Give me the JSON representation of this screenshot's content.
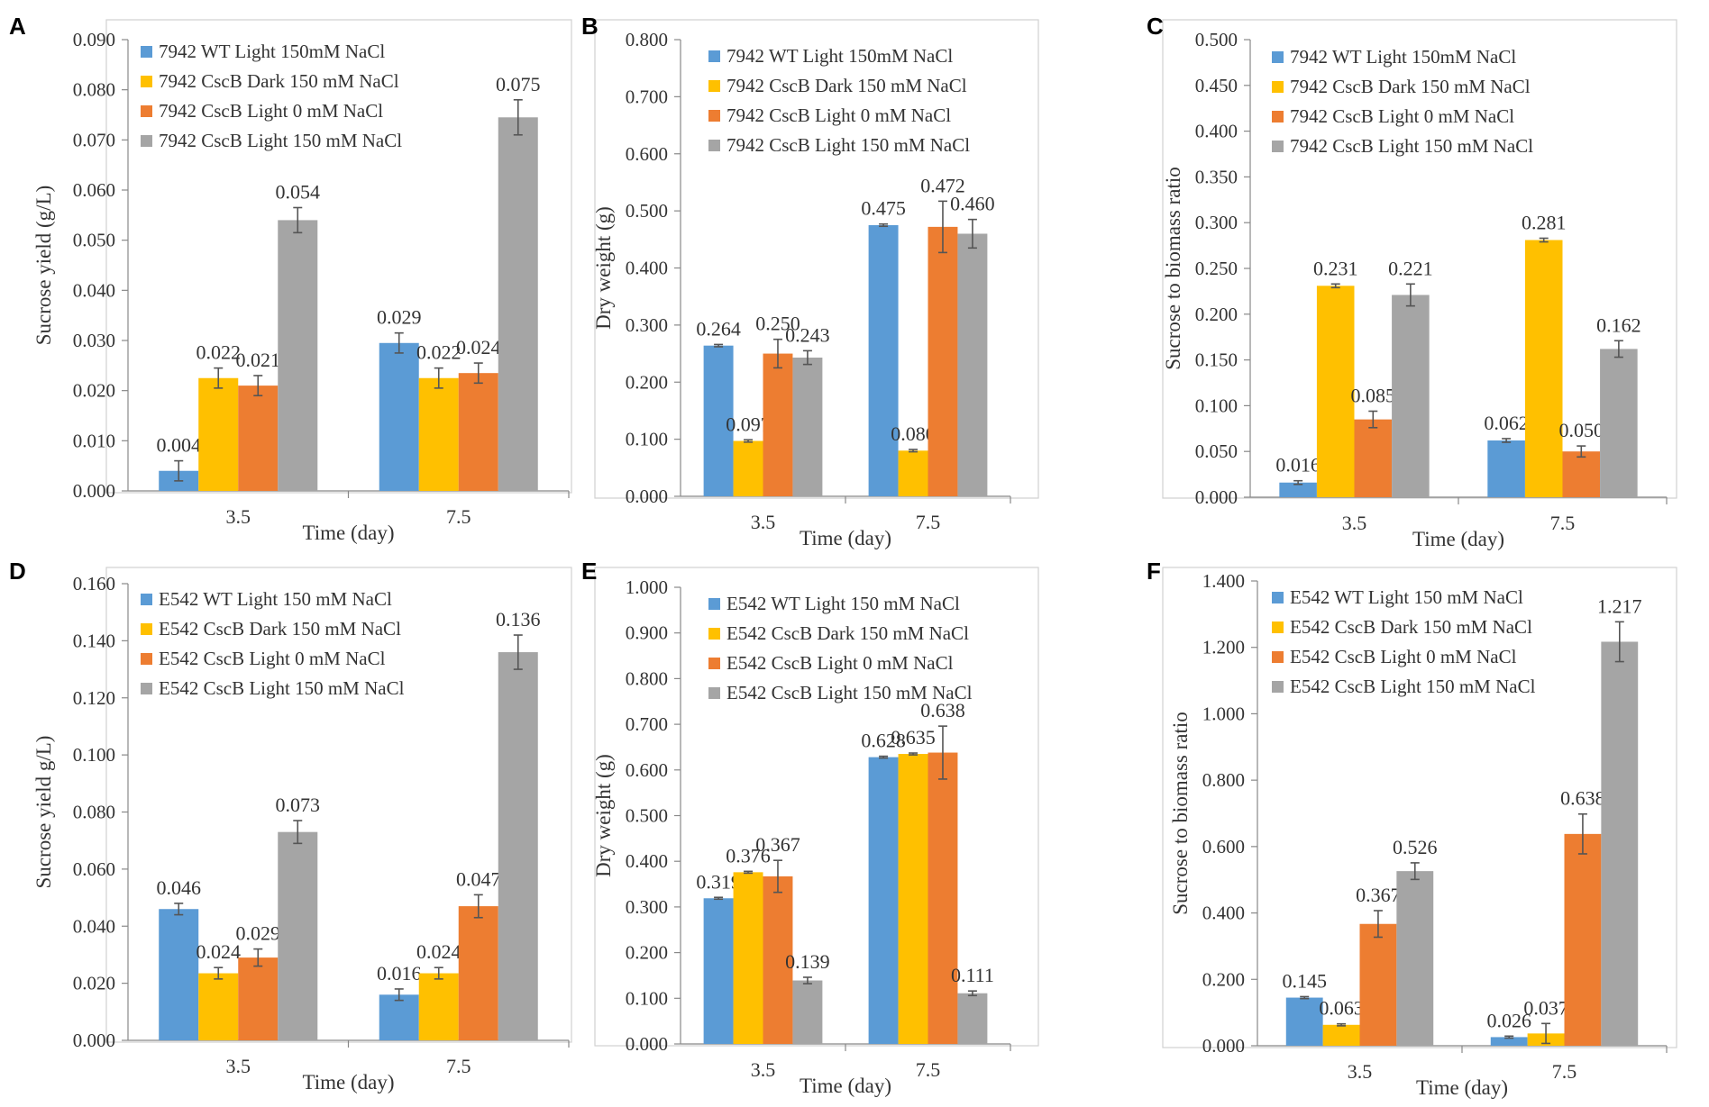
{
  "colors": {
    "s1": "#5B9BD5",
    "s2": "#FFC000",
    "s3": "#ED7D31",
    "s4": "#A5A5A5"
  },
  "chart_data": [
    {
      "panel": "A",
      "type": "bar",
      "categories": [
        "3.5",
        "7.5"
      ],
      "xlabel": "Time (day)",
      "ylabel": "Sucrose yield (g/L)",
      "ylim": [
        0,
        0.09
      ],
      "yticks": [
        "0.000",
        "0.010",
        "0.020",
        "0.030",
        "0.040",
        "0.050",
        "0.060",
        "0.070",
        "0.080",
        "0.090"
      ],
      "series": [
        {
          "name": "7942 WT Light 150mM NaCl",
          "values": [
            0.004,
            0.0295
          ],
          "errors": [
            0.002,
            0.002
          ],
          "labels": [
            "0.004",
            "0.029"
          ]
        },
        {
          "name": "7942 CscB Dark 150 mM NaCl",
          "values": [
            0.0225,
            0.0225
          ],
          "errors": [
            0.002,
            0.002
          ],
          "labels": [
            "0.022",
            "0.022"
          ]
        },
        {
          "name": "7942 CscB Light 0 mM NaCl",
          "values": [
            0.021,
            0.0235
          ],
          "errors": [
            0.002,
            0.002
          ],
          "labels": [
            "0.021",
            "0.024"
          ]
        },
        {
          "name": "7942 CscB Light 150 mM NaCl",
          "values": [
            0.054,
            0.0745
          ],
          "errors": [
            0.0025,
            0.0035
          ],
          "labels": [
            "0.054",
            "0.075"
          ]
        }
      ]
    },
    {
      "panel": "B",
      "type": "bar",
      "categories": [
        "3.5",
        "7.5"
      ],
      "xlabel": "Time (day)",
      "ylabel": "Dry weight  (g)",
      "ylim": [
        0,
        0.8
      ],
      "yticks": [
        "0.000",
        "0.100",
        "0.200",
        "0.300",
        "0.400",
        "0.500",
        "0.600",
        "0.700",
        "0.800"
      ],
      "series": [
        {
          "name": "7942 WT Light 150mM NaCl",
          "values": [
            0.264,
            0.475
          ],
          "errors": [
            0.002,
            0.002
          ],
          "labels": [
            "0.264",
            "0.475"
          ]
        },
        {
          "name": "7942 CscB Dark 150 mM NaCl",
          "values": [
            0.097,
            0.08
          ],
          "errors": [
            0.002,
            0.002
          ],
          "labels": [
            "0.097",
            "0.080"
          ]
        },
        {
          "name": "7942 CscB Light 0 mM NaCl",
          "values": [
            0.25,
            0.472
          ],
          "errors": [
            0.025,
            0.045
          ],
          "labels": [
            "0.250",
            "0.472"
          ]
        },
        {
          "name": "7942 CscB Light 150 mM NaCl",
          "values": [
            0.243,
            0.46
          ],
          "errors": [
            0.012,
            0.025
          ],
          "labels": [
            "0.243",
            "0.460"
          ]
        }
      ]
    },
    {
      "panel": "C",
      "type": "bar",
      "categories": [
        "3.5",
        "7.5"
      ],
      "xlabel": "Time (day)",
      "ylabel": "Sucrose to biomass ratio",
      "ylim": [
        0,
        0.5
      ],
      "yticks": [
        "0.000",
        "0.050",
        "0.100",
        "0.150",
        "0.200",
        "0.250",
        "0.300",
        "0.350",
        "0.400",
        "0.450",
        "0.500"
      ],
      "series": [
        {
          "name": "7942 WT Light 150mM NaCl",
          "values": [
            0.016,
            0.062
          ],
          "errors": [
            0.002,
            0.002
          ],
          "labels": [
            "0.016",
            "0.062"
          ]
        },
        {
          "name": "7942 CscB Dark 150 mM NaCl",
          "values": [
            0.231,
            0.281
          ],
          "errors": [
            0.002,
            0.002
          ],
          "labels": [
            "0.231",
            "0.281"
          ]
        },
        {
          "name": "7942 CscB Light 0 mM NaCl",
          "values": [
            0.085,
            0.05
          ],
          "errors": [
            0.009,
            0.006
          ],
          "labels": [
            "0.085",
            "0.050"
          ]
        },
        {
          "name": "7942 CscB Light 150 mM NaCl",
          "values": [
            0.221,
            0.162
          ],
          "errors": [
            0.012,
            0.009
          ],
          "labels": [
            "0.221",
            "0.162"
          ]
        }
      ]
    },
    {
      "panel": "D",
      "type": "bar",
      "categories": [
        "3.5",
        "7.5"
      ],
      "xlabel": "Time (day)",
      "ylabel": "Sucrose yield  g/L)",
      "ylim": [
        0,
        0.16
      ],
      "yticks": [
        "0.000",
        "0.020",
        "0.040",
        "0.060",
        "0.080",
        "0.100",
        "0.120",
        "0.140",
        "0.160"
      ],
      "series": [
        {
          "name": "E542 WT Light 150 mM NaCl",
          "values": [
            0.046,
            0.016
          ],
          "errors": [
            0.002,
            0.002
          ],
          "labels": [
            "0.046",
            "0.016"
          ]
        },
        {
          "name": "E542 CscB Dark 150 mM NaCl",
          "values": [
            0.0235,
            0.0235
          ],
          "errors": [
            0.002,
            0.002
          ],
          "labels": [
            "0.024",
            "0.024"
          ]
        },
        {
          "name": "E542 CscB Light 0 mM NaCl",
          "values": [
            0.029,
            0.047
          ],
          "errors": [
            0.003,
            0.004
          ],
          "labels": [
            "0.029",
            "0.047"
          ]
        },
        {
          "name": "E542 CscB Light 150 mM NaCl",
          "values": [
            0.073,
            0.136
          ],
          "errors": [
            0.004,
            0.006
          ],
          "labels": [
            "0.073",
            "0.136"
          ]
        }
      ]
    },
    {
      "panel": "E",
      "type": "bar",
      "categories": [
        "3.5",
        "7.5"
      ],
      "xlabel": "Time (day)",
      "ylabel": "Dry weight  (g)",
      "ylim": [
        0,
        1.0
      ],
      "yticks": [
        "0.000",
        "0.100",
        "0.200",
        "0.300",
        "0.400",
        "0.500",
        "0.600",
        "0.700",
        "0.800",
        "0.900",
        "1.000"
      ],
      "series": [
        {
          "name": "E542 WT Light 150 mM NaCl",
          "values": [
            0.319,
            0.628
          ],
          "errors": [
            0.002,
            0.002
          ],
          "labels": [
            "0.319",
            "0.628"
          ]
        },
        {
          "name": "E542 CscB Dark 150 mM NaCl",
          "values": [
            0.376,
            0.635
          ],
          "errors": [
            0.002,
            0.002
          ],
          "labels": [
            "0.376",
            "0.635"
          ]
        },
        {
          "name": "E542 CscB Light 0 mM NaCl",
          "values": [
            0.367,
            0.638
          ],
          "errors": [
            0.035,
            0.058
          ],
          "labels": [
            "0.367",
            "0.638"
          ]
        },
        {
          "name": "E542 CscB Light 150 mM NaCl",
          "values": [
            0.139,
            0.111
          ],
          "errors": [
            0.007,
            0.005
          ],
          "labels": [
            "0.139",
            "0.111"
          ]
        }
      ]
    },
    {
      "panel": "F",
      "type": "bar",
      "categories": [
        "3.5",
        "7.5"
      ],
      "xlabel": "Time (day)",
      "ylabel": "Sucrose to biomass ratio",
      "ylim": [
        0,
        1.4
      ],
      "yticks": [
        "0.000",
        "0.200",
        "0.400",
        "0.600",
        "0.800",
        "1.000",
        "1.200",
        "1.400"
      ],
      "series": [
        {
          "name": "E542 WT Light 150 mM NaCl",
          "values": [
            0.145,
            0.026
          ],
          "errors": [
            0.003,
            0.003
          ],
          "labels": [
            "0.145",
            "0.026"
          ]
        },
        {
          "name": "E542 CscB Dark 150 mM NaCl",
          "values": [
            0.063,
            0.037
          ],
          "errors": [
            0.003,
            0.03
          ],
          "labels": [
            "0.063",
            "0.037"
          ]
        },
        {
          "name": "E542 CscB Light 0 mM NaCl",
          "values": [
            0.367,
            0.638
          ],
          "errors": [
            0.04,
            0.06
          ],
          "labels": [
            "0.367",
            "0.638"
          ]
        },
        {
          "name": "E542 CscB Light 150 mM NaCl",
          "values": [
            0.526,
            1.217
          ],
          "errors": [
            0.025,
            0.06
          ],
          "labels": [
            "0.526",
            "1.217"
          ]
        }
      ]
    }
  ]
}
